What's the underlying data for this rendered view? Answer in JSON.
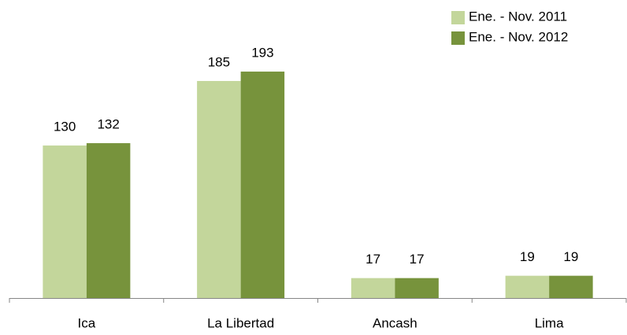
{
  "chart_data": {
    "type": "bar",
    "categories": [
      "Ica",
      "La Libertad",
      "Ancash",
      "Lima"
    ],
    "series": [
      {
        "name": "Ene. - Nov. 2011",
        "color": "#c3d69b",
        "values": [
          130,
          185,
          17,
          19
        ]
      },
      {
        "name": "Ene. - Nov. 2012",
        "color": "#77933c",
        "values": [
          132,
          193,
          17,
          19
        ]
      }
    ],
    "legend": "top-right"
  }
}
